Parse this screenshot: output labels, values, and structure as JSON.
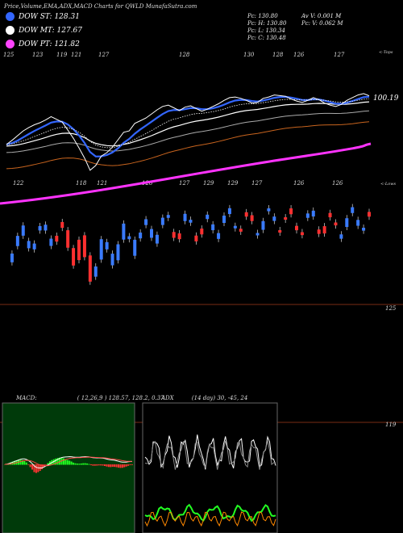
{
  "title": "Price,Volume,EMA,ADX,MACD Charts for QWLD MunafaSutra.com",
  "legend": [
    {
      "label": "DOW ST: 128.31",
      "color": "#3366ff"
    },
    {
      "label": "DOW MT: 127.67",
      "color": "#ffffff"
    },
    {
      "label": "DOW PT: 121.82",
      "color": "#ff44ff"
    }
  ],
  "info": {
    "col1": [
      "Pc: 130.80",
      "Pc: H: 130.80",
      "Pc: L: 130.34",
      "Pc: C: 130.48"
    ],
    "col2": [
      "Av V: 0.001 M",
      "Pc: V: 0.062 M"
    ]
  },
  "price_labels": {
    "last": "100.19",
    "level_125": "125",
    "level_119": "119"
  },
  "upper_ticks": {
    "labels": [
      "125",
      "123",
      "119",
      "121",
      "127",
      "128",
      "130",
      "128",
      "126",
      "127"
    ],
    "caption": "<-Tops"
  },
  "lower_ticks": {
    "labels": [
      "122",
      "118",
      "121",
      "126",
      "127",
      "129",
      "129",
      "127",
      "126",
      "126"
    ],
    "caption": "<-Lows"
  },
  "macd": {
    "label": "MACD:",
    "values": "( 12,26,9 ) 128.57, 128.2, 0.37"
  },
  "adx": {
    "label": "ADX",
    "values": "(14 day) 30, -45, 24"
  },
  "chart_data": {
    "type": "line",
    "close": [
      123.3,
      123.9,
      124.6,
      125.3,
      125.8,
      126.2,
      126.5,
      126.9,
      127.4,
      127.0,
      126.6,
      125.4,
      124.2,
      122.8,
      121.3,
      119.5,
      120.2,
      121.6,
      122.1,
      122.9,
      124.0,
      125.1,
      125.3,
      126.4,
      126.8,
      127.2,
      127.8,
      128.4,
      128.9,
      129.1,
      128.7,
      128.3,
      128.8,
      129.0,
      128.6,
      128.2,
      128.5,
      128.9,
      129.3,
      129.8,
      130.2,
      130.3,
      130.1,
      129.8,
      129.4,
      129.5,
      130.1,
      130.3,
      130.6,
      130.5,
      130.4,
      130.0,
      129.7,
      129.5,
      129.8,
      130.2,
      129.9,
      129.4,
      129.1,
      128.9,
      129.2,
      129.8,
      130.2,
      130.6,
      130.8,
      130.48
    ]
  }
}
